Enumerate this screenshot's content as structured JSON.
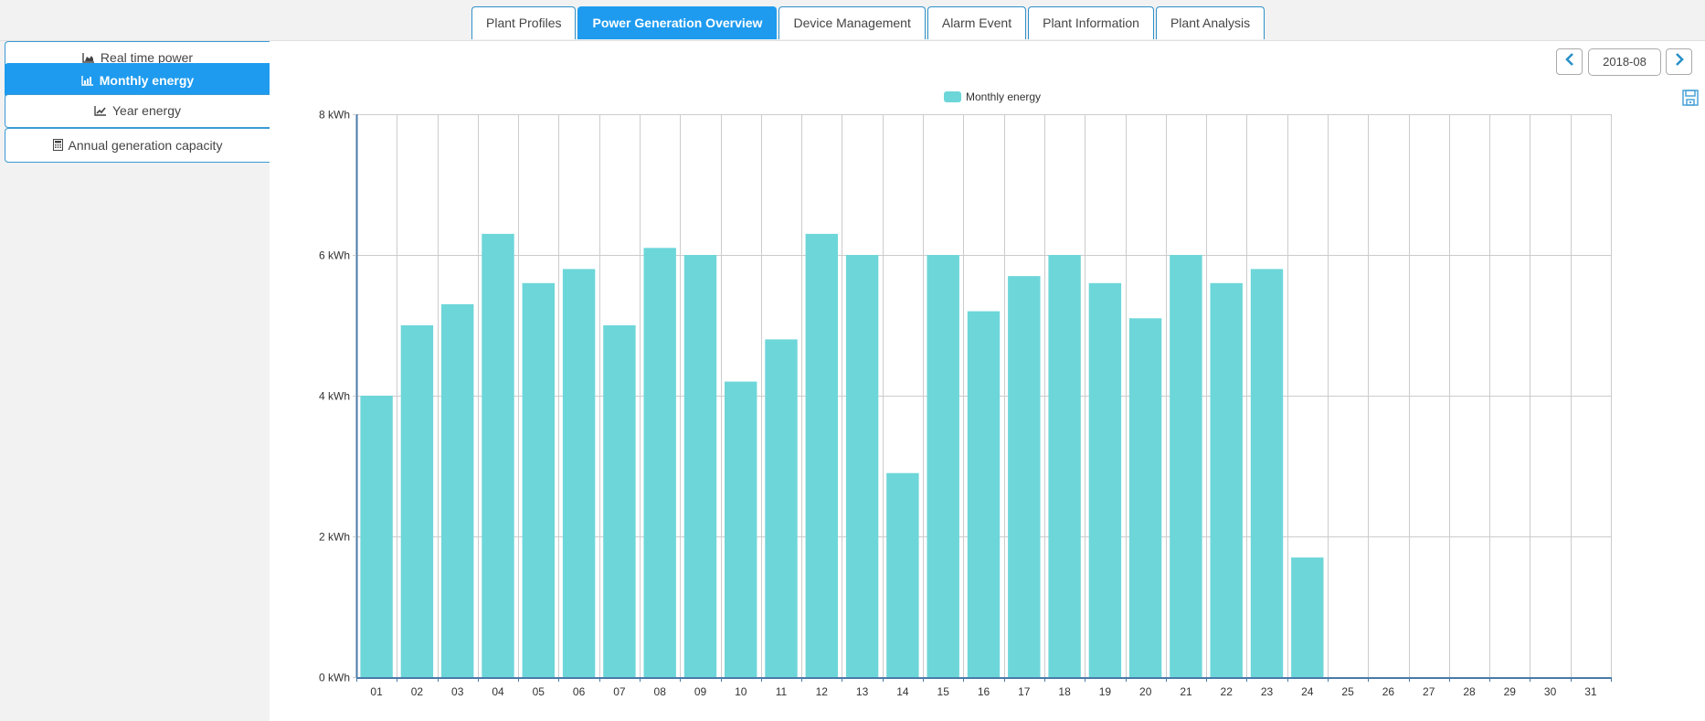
{
  "tabs": [
    {
      "label": "Plant Profiles",
      "active": false
    },
    {
      "label": "Power Generation Overview",
      "active": true
    },
    {
      "label": "Device Management",
      "active": false
    },
    {
      "label": "Alarm Event",
      "active": false
    },
    {
      "label": "Plant Information",
      "active": false
    },
    {
      "label": "Plant Analysis",
      "active": false
    }
  ],
  "sidebar": {
    "items": [
      {
        "label": "Real time power",
        "icon": "area-chart-icon",
        "active": false
      },
      {
        "label": "Monthly energy",
        "icon": "bar-chart-icon",
        "active": true
      },
      {
        "label": "Year energy",
        "icon": "line-chart-icon",
        "active": false
      },
      {
        "label": "Annual generation capacity",
        "icon": "calculator-icon",
        "active": false
      }
    ]
  },
  "period_nav": {
    "value": "2018-08",
    "prev_icon": "chevron-left-icon",
    "next_icon": "chevron-right-icon"
  },
  "toolbox": {
    "save_icon": "save-icon"
  },
  "colors": {
    "accent": "#1e9bef",
    "bar": "#6dd6d9",
    "axis": "#4a7aa8",
    "grid": "#cccccc"
  },
  "chart_data": {
    "type": "bar",
    "title": "",
    "legend": [
      "Monthly energy"
    ],
    "legend_position": "top-center",
    "xlabel": "",
    "ylabel": "",
    "y_unit": "kWh",
    "ylim": [
      0,
      8
    ],
    "y_ticks": [
      "0 kWh",
      "2 kWh",
      "4 kWh",
      "6 kWh",
      "8 kWh"
    ],
    "y_tick_values": [
      0,
      2,
      4,
      6,
      8
    ],
    "grid": true,
    "categories": [
      "01",
      "02",
      "03",
      "04",
      "05",
      "06",
      "07",
      "08",
      "09",
      "10",
      "11",
      "12",
      "13",
      "14",
      "15",
      "16",
      "17",
      "18",
      "19",
      "20",
      "21",
      "22",
      "23",
      "24",
      "25",
      "26",
      "27",
      "28",
      "29",
      "30",
      "31"
    ],
    "series": [
      {
        "name": "Monthly energy",
        "values": [
          4.0,
          5.0,
          5.3,
          6.3,
          5.6,
          5.8,
          5.0,
          6.1,
          6.0,
          4.2,
          4.8,
          6.3,
          6.0,
          2.9,
          6.0,
          5.2,
          5.7,
          6.0,
          5.6,
          5.1,
          6.0,
          5.6,
          5.8,
          1.7,
          0,
          0,
          0,
          0,
          0,
          0,
          0
        ]
      }
    ]
  }
}
